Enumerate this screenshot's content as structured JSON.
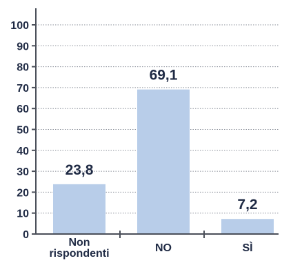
{
  "chart_data": {
    "type": "bar",
    "categories": [
      "Non rispondenti",
      "NO",
      "SÌ"
    ],
    "category_lines": [
      [
        "Non",
        "rispondenti"
      ],
      [
        "NO"
      ],
      [
        "SÌ"
      ]
    ],
    "values": [
      23.8,
      69.1,
      7.2
    ],
    "value_labels": [
      "23,8",
      "69,1",
      "7,2"
    ],
    "ylim": [
      0,
      100
    ],
    "yticks": [
      0,
      10,
      20,
      30,
      40,
      50,
      60,
      70,
      80,
      90,
      100
    ],
    "grid": true,
    "legend": "none",
    "colors": {
      "bar": "#b8cde9",
      "text": "#1f2a44",
      "axis": "#4a4f59",
      "grid": "#8a8f99"
    }
  }
}
